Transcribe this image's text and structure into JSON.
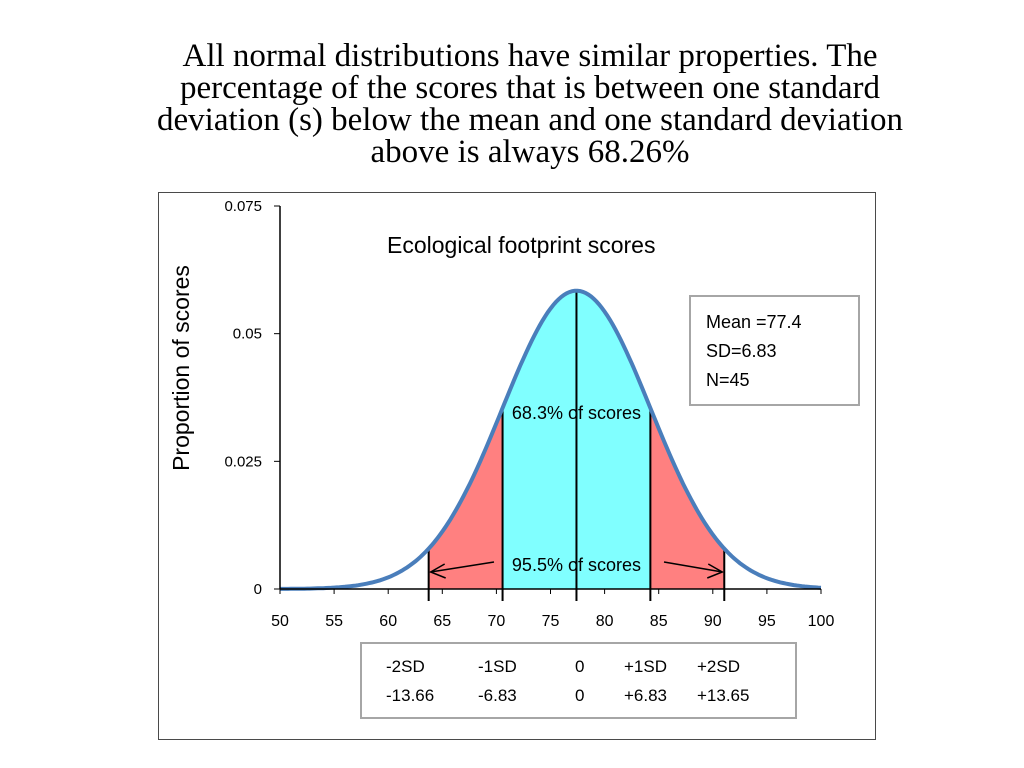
{
  "heading": {
    "lines": [
      "All normal distributions have similar properties. The",
      "percentage of the scores that is between one standard",
      "deviation (s) below the mean and one standard deviation",
      "above is always 68.26%"
    ]
  },
  "chart_data": {
    "type": "line",
    "title": "Ecological  footprint scores",
    "ylabel": "Proportion of scores",
    "xlabel": "",
    "xlim": [
      50,
      100
    ],
    "ylim": [
      0,
      0.075
    ],
    "x_ticks": [
      "50",
      "55",
      "60",
      "65",
      "70",
      "75",
      "80",
      "85",
      "90",
      "95",
      "100"
    ],
    "y_ticks": [
      "0",
      "0.025",
      "0.05",
      "0.075"
    ],
    "grid": false,
    "mean": 77.4,
    "sd": 6.83,
    "series": [
      {
        "distribution": "normal",
        "mean": 77.4,
        "sd": 6.83
      }
    ],
    "colors": {
      "curve": "#4a7ebb",
      "inner_region": "#80ffff",
      "outer_region": "#ff8080"
    },
    "stats_box": {
      "lines": [
        "Mean =77.4",
        "SD=6.83",
        "N=45"
      ]
    },
    "annotations": {
      "inner": "68.3% of scores",
      "outer": "95.5% of scores"
    },
    "sd_table": {
      "row1": [
        "-2SD",
        "-1SD",
        "0",
        "+1SD",
        "+2SD"
      ],
      "row2": [
        "-13.66",
        "-6.83",
        "0",
        "+6.83",
        "+13.65"
      ]
    }
  }
}
